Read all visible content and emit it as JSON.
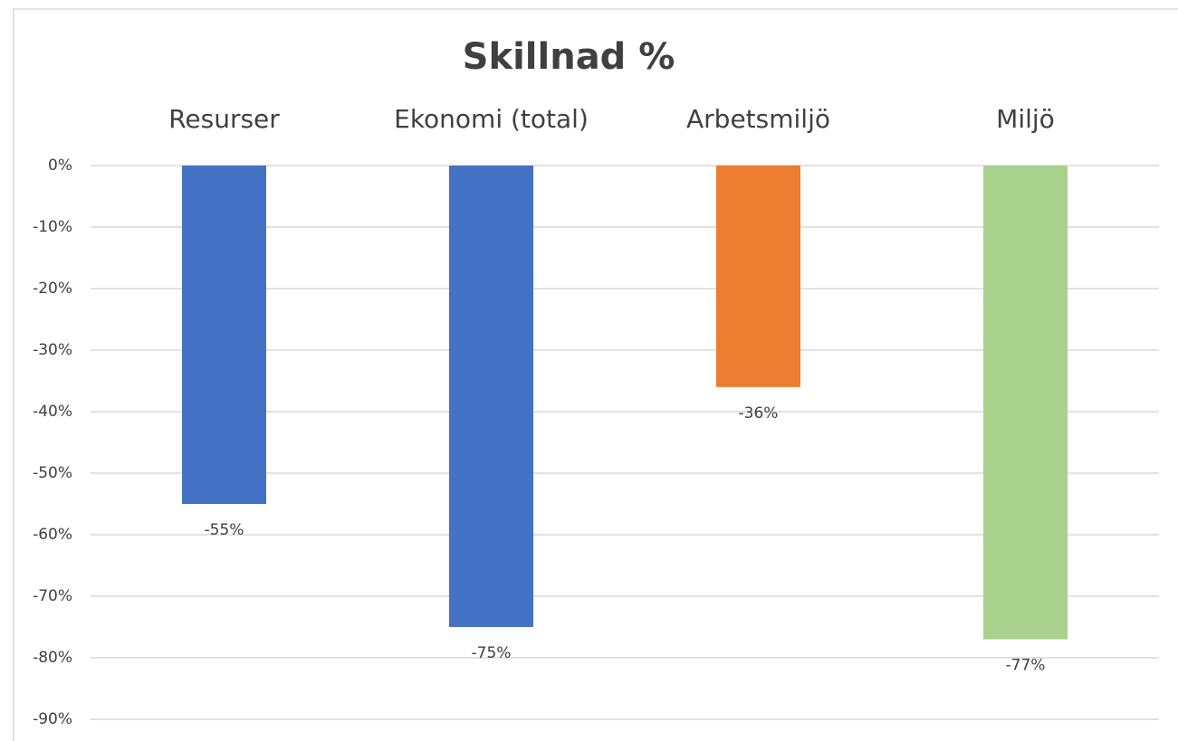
{
  "chart_data": {
    "type": "bar",
    "title": "Skillnad %",
    "categories": [
      "Resurser",
      "Ekonomi (total)",
      "Arbetsmiljö",
      "Miljö"
    ],
    "values": [
      -55,
      -75,
      -36,
      -77
    ],
    "value_labels": [
      "-55%",
      "-75%",
      "-36%",
      "-77%"
    ],
    "colors": [
      "#4472c4",
      "#4472c4",
      "#ed7d31",
      "#a9d18e"
    ],
    "ylim": [
      -90,
      0
    ],
    "yticks": [
      {
        "value": 0,
        "label": "0%"
      },
      {
        "value": -10,
        "label": "-10%"
      },
      {
        "value": -20,
        "label": "-20%"
      },
      {
        "value": -30,
        "label": "-30%"
      },
      {
        "value": -40,
        "label": "-40%"
      },
      {
        "value": -50,
        "label": "-50%"
      },
      {
        "value": -60,
        "label": "-60%"
      },
      {
        "value": -70,
        "label": "-70%"
      },
      {
        "value": -80,
        "label": "-80%"
      },
      {
        "value": -90,
        "label": "-90%"
      }
    ],
    "grid": true
  }
}
